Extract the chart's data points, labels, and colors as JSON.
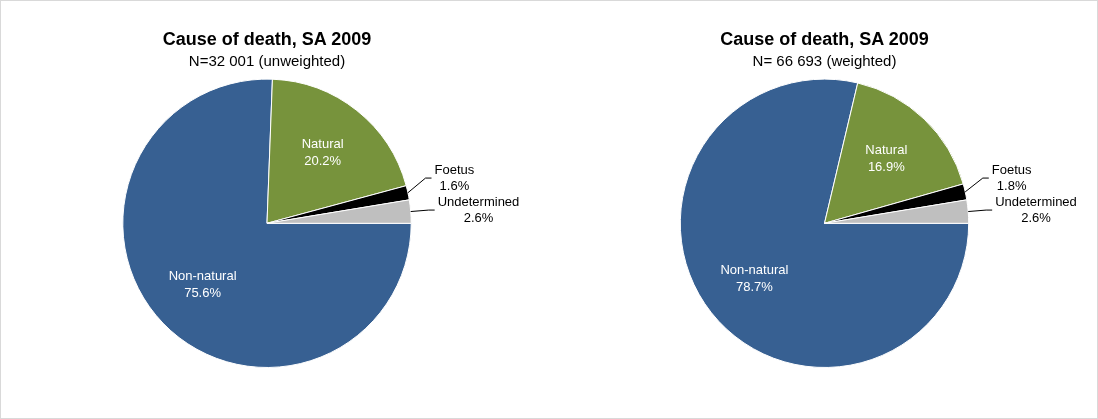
{
  "chart_data": [
    {
      "type": "pie",
      "title": "Cause of death, SA 2009",
      "subtitle": "N=32 001 (unweighted)",
      "categories": [
        "Non-natural",
        "Natural",
        "Foetus",
        "Undetermined"
      ],
      "values": [
        75.6,
        20.2,
        1.6,
        2.6
      ],
      "colors": [
        "#376092",
        "#77933c",
        "#000000",
        "#bfbfbf"
      ],
      "value_labels": [
        "75.6%",
        "20.2%",
        "1.6%",
        "2.6%"
      ]
    },
    {
      "type": "pie",
      "title": "Cause of death, SA 2009",
      "subtitle": "N= 66 693 (weighted)",
      "categories": [
        "Non-natural",
        "Natural",
        "Foetus",
        "Undetermined"
      ],
      "values": [
        78.7,
        16.9,
        1.8,
        2.6
      ],
      "colors": [
        "#376092",
        "#77933c",
        "#000000",
        "#bfbfbf"
      ],
      "value_labels": [
        "78.7%",
        "16.9%",
        "1.8%",
        "2.6%"
      ]
    }
  ]
}
